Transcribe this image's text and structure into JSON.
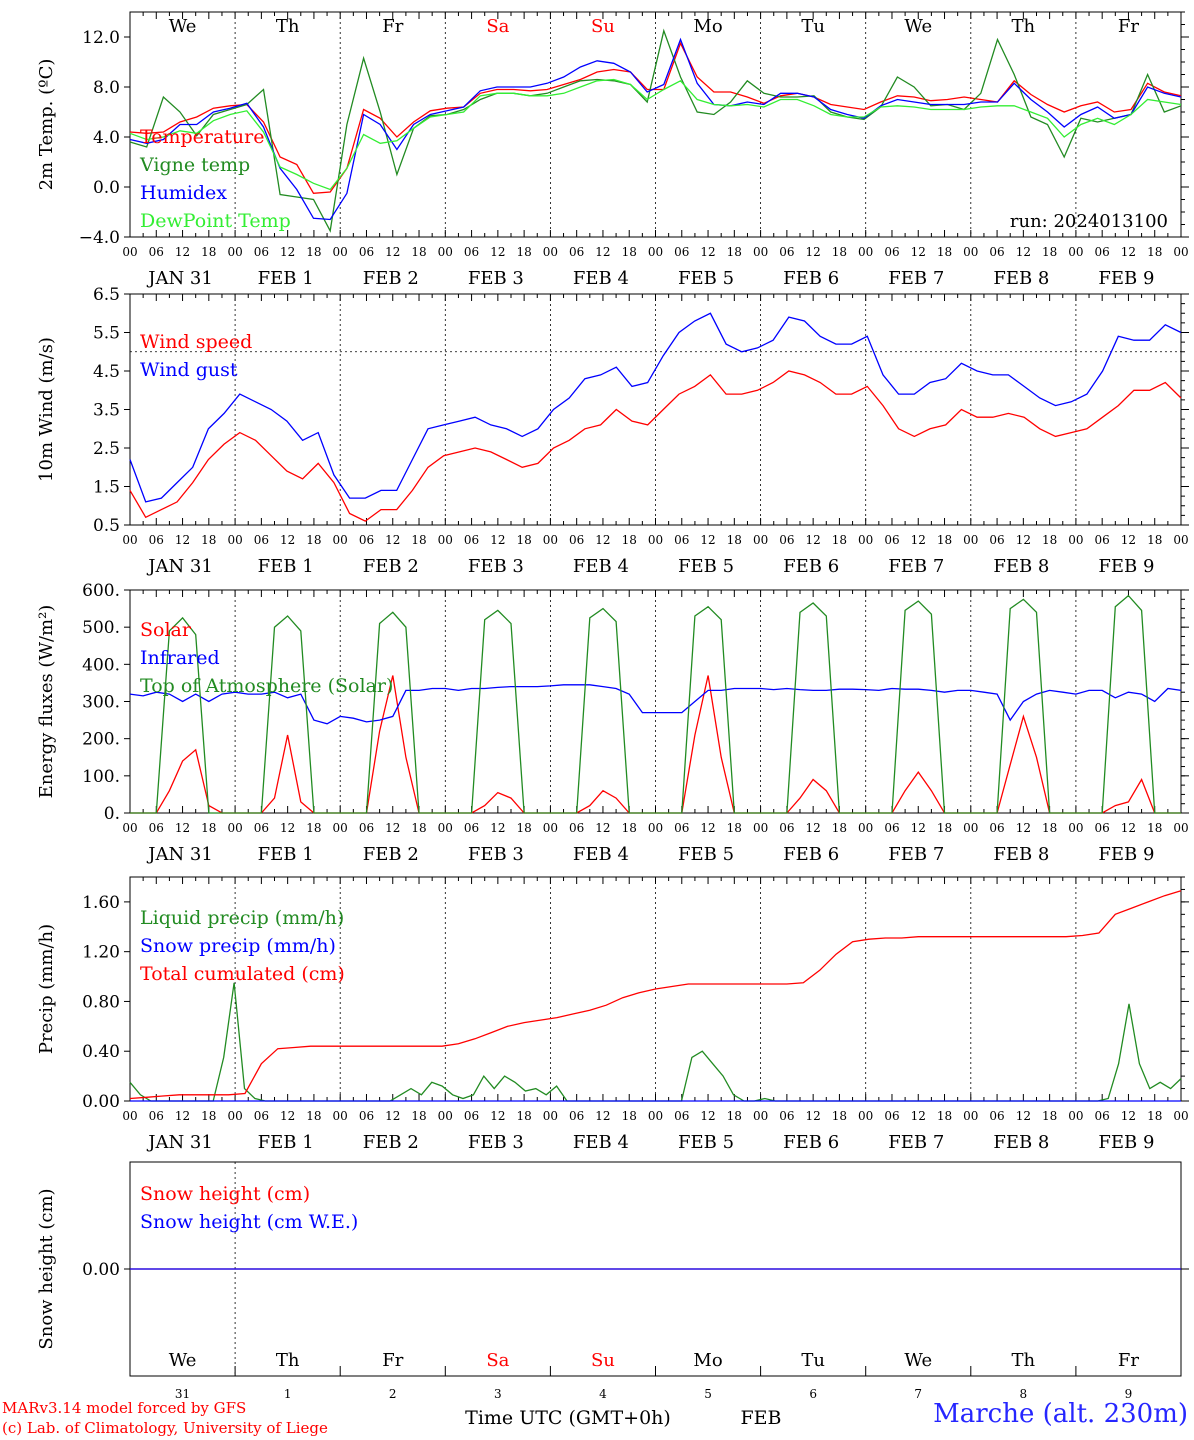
{
  "chart_data": [
    {
      "type": "line",
      "ylabel": "2m Temp. (ºC)",
      "ylim": [
        -4,
        14
      ],
      "yticks": [
        -4,
        0,
        4,
        8,
        12
      ],
      "ytick_labels": [
        "−4.0",
        "0.0",
        "4.0",
        "8.0",
        "12.0"
      ],
      "annotation": "run: 2024013100",
      "x_hours_step": 6,
      "series": [
        {
          "name": "Temperature",
          "color": "#ff0000",
          "values": [
            4.4,
            4.3,
            4.4,
            5.2,
            5.6,
            6.3,
            6.5,
            6.6,
            5.2,
            2.4,
            1.8,
            -0.5,
            -0.4,
            1.5,
            6.2,
            5.5,
            4.0,
            5.2,
            6.1,
            6.3,
            6.4,
            7.5,
            7.8,
            7.8,
            7.7,
            7.8,
            8.2,
            8.6,
            9.2,
            9.4,
            9.2,
            7.8,
            7.8,
            11.5,
            8.8,
            7.6,
            7.6,
            7.2,
            6.7,
            7.3,
            7.5,
            7.2,
            6.6,
            6.4,
            6.2,
            6.8,
            7.3,
            7.2,
            6.9,
            7.0,
            7.2,
            7.0,
            6.8,
            8.5,
            7.4,
            6.6,
            6.0,
            6.5,
            6.8,
            6.0,
            6.2,
            8.3,
            7.6,
            7.3
          ]
        },
        {
          "name": "Vigne temp",
          "color": "#228b22",
          "values": [
            3.6,
            3.2,
            7.2,
            6.0,
            4.1,
            5.8,
            6.2,
            6.6,
            7.8,
            -0.6,
            -0.8,
            -1.0,
            -3.5,
            5.0,
            10.3,
            6.0,
            1.0,
            4.7,
            5.7,
            5.8,
            6.2,
            7.0,
            7.5,
            7.5,
            7.3,
            7.5,
            8.0,
            8.5,
            8.6,
            8.5,
            8.2,
            6.8,
            12.5,
            8.8,
            6.0,
            5.8,
            6.8,
            8.5,
            7.5,
            7.2,
            7.2,
            7.3,
            6.0,
            5.6,
            5.4,
            6.4,
            8.8,
            8.0,
            6.5,
            6.6,
            6.2,
            7.5,
            11.8,
            9.0,
            5.6,
            5.0,
            2.4,
            5.5,
            5.2,
            5.5,
            5.8,
            9.0,
            6.0,
            6.5
          ]
        },
        {
          "name": "Humidex",
          "color": "#0000ff",
          "values": [
            3.8,
            3.5,
            3.8,
            5.0,
            5.0,
            6.0,
            6.3,
            6.7,
            4.8,
            1.5,
            -0.2,
            -2.5,
            -2.6,
            -0.5,
            5.8,
            5.0,
            3.0,
            5.0,
            5.8,
            6.1,
            6.4,
            7.7,
            8.0,
            8.0,
            8.0,
            8.3,
            8.8,
            9.6,
            10.1,
            9.9,
            9.2,
            7.6,
            8.2,
            11.8,
            8.3,
            6.6,
            6.5,
            6.8,
            6.6,
            7.5,
            7.5,
            7.2,
            6.2,
            5.8,
            5.5,
            6.5,
            7.0,
            6.8,
            6.6,
            6.6,
            6.6,
            6.8,
            6.8,
            8.3,
            7.0,
            6.0,
            4.8,
            5.8,
            6.4,
            5.5,
            5.8,
            8.0,
            7.5,
            7.2
          ]
        },
        {
          "name": "DewPoint Temp",
          "color": "#33ee33",
          "values": [
            4.3,
            3.8,
            4.0,
            4.5,
            4.3,
            5.3,
            5.8,
            6.1,
            4.4,
            1.6,
            1.0,
            0.3,
            -0.2,
            1.5,
            4.2,
            3.5,
            3.7,
            4.7,
            5.6,
            5.8,
            6.0,
            7.3,
            7.5,
            7.5,
            7.3,
            7.3,
            7.5,
            8.0,
            8.5,
            8.6,
            8.2,
            7.0,
            7.8,
            8.5,
            7.0,
            6.6,
            6.5,
            6.6,
            6.4,
            7.0,
            7.0,
            6.5,
            5.8,
            5.6,
            5.6,
            6.4,
            6.5,
            6.4,
            6.2,
            6.2,
            6.2,
            6.4,
            6.5,
            6.5,
            6.0,
            5.5,
            4.0,
            5.0,
            5.5,
            5.0,
            5.8,
            7.0,
            6.8,
            6.6
          ]
        }
      ]
    },
    {
      "type": "line",
      "ylabel": "10m Wind (m/s)",
      "ylim": [
        0.5,
        6.5
      ],
      "yticks": [
        0.5,
        1.5,
        2.5,
        3.5,
        4.5,
        5.5,
        6.5
      ],
      "ytick_labels": [
        "0.5",
        "1.5",
        "2.5",
        "3.5",
        "4.5",
        "5.5",
        "6.5"
      ],
      "dashed_y": 5.0,
      "x_hours_step": 6,
      "series": [
        {
          "name": "Wind speed",
          "color": "#ff0000",
          "values": [
            1.4,
            0.7,
            0.9,
            1.1,
            1.6,
            2.2,
            2.6,
            2.9,
            2.7,
            2.3,
            1.9,
            1.7,
            2.1,
            1.6,
            0.8,
            0.6,
            0.9,
            0.9,
            1.4,
            2.0,
            2.3,
            2.4,
            2.5,
            2.4,
            2.2,
            2.0,
            2.1,
            2.5,
            2.7,
            3.0,
            3.1,
            3.5,
            3.2,
            3.1,
            3.5,
            3.9,
            4.1,
            4.4,
            3.9,
            3.9,
            4.0,
            4.2,
            4.5,
            4.4,
            4.2,
            3.9,
            3.9,
            4.1,
            3.6,
            3.0,
            2.8,
            3.0,
            3.1,
            3.5,
            3.3,
            3.3,
            3.4,
            3.3,
            3.0,
            2.8,
            2.9,
            3.0,
            3.3,
            3.6,
            4.0,
            4.0,
            4.2,
            3.8
          ]
        },
        {
          "name": "Wind gust",
          "color": "#0000ff",
          "values": [
            2.2,
            1.1,
            1.2,
            1.6,
            2.0,
            3.0,
            3.4,
            3.9,
            3.7,
            3.5,
            3.2,
            2.7,
            2.9,
            1.8,
            1.2,
            1.2,
            1.4,
            1.4,
            2.2,
            3.0,
            3.1,
            3.2,
            3.3,
            3.1,
            3.0,
            2.8,
            3.0,
            3.5,
            3.8,
            4.3,
            4.4,
            4.6,
            4.1,
            4.2,
            4.9,
            5.5,
            5.8,
            6.0,
            5.2,
            5.0,
            5.1,
            5.3,
            5.9,
            5.8,
            5.4,
            5.2,
            5.2,
            5.4,
            4.4,
            3.9,
            3.9,
            4.2,
            4.3,
            4.7,
            4.5,
            4.4,
            4.4,
            4.1,
            3.8,
            3.6,
            3.7,
            3.9,
            4.5,
            5.4,
            5.3,
            5.3,
            5.7,
            5.5
          ]
        }
      ]
    },
    {
      "type": "line",
      "ylabel": "Energy fluxes (W/m²)",
      "ylim": [
        0,
        600
      ],
      "yticks": [
        0,
        100,
        200,
        300,
        400,
        500,
        600
      ],
      "ytick_labels": [
        "0.",
        "100.",
        "200.",
        "300.",
        "400.",
        "500.",
        "600."
      ],
      "x_hours_step": 3,
      "series": [
        {
          "name": "Solar",
          "color": "#ff0000",
          "values": [
            0,
            0,
            0,
            60,
            140,
            170,
            20,
            0,
            0,
            0,
            0,
            40,
            210,
            30,
            0,
            0,
            0,
            0,
            0,
            220,
            370,
            150,
            0,
            0,
            0,
            0,
            0,
            20,
            55,
            40,
            0,
            0,
            0,
            0,
            0,
            20,
            60,
            40,
            0,
            0,
            0,
            0,
            0,
            210,
            370,
            150,
            0,
            0,
            0,
            0,
            0,
            40,
            90,
            60,
            0,
            0,
            0,
            0,
            0,
            60,
            110,
            60,
            0,
            0,
            0,
            0,
            0,
            130,
            260,
            150,
            0,
            0,
            0,
            0,
            0,
            20,
            30,
            90,
            0,
            0,
            0
          ]
        },
        {
          "name": "Infrared",
          "color": "#0000ff",
          "values": [
            320,
            315,
            325,
            320,
            300,
            320,
            300,
            320,
            325,
            320,
            320,
            325,
            310,
            320,
            250,
            240,
            260,
            255,
            245,
            250,
            260,
            330,
            330,
            335,
            335,
            330,
            335,
            335,
            338,
            340,
            340,
            340,
            342,
            345,
            345,
            345,
            340,
            335,
            320,
            270,
            270,
            270,
            270,
            300,
            330,
            330,
            335,
            335,
            335,
            332,
            335,
            332,
            330,
            330,
            333,
            333,
            332,
            330,
            335,
            333,
            333,
            330,
            325,
            330,
            330,
            325,
            320,
            250,
            300,
            320,
            330,
            325,
            320,
            330,
            330,
            310,
            325,
            320,
            300,
            335,
            330
          ]
        },
        {
          "name": "Top of Atmosphere (Solar)",
          "color": "#228b22",
          "values": [
            0,
            0,
            0,
            490,
            525,
            480,
            0,
            0,
            0,
            0,
            0,
            500,
            530,
            490,
            0,
            0,
            0,
            0,
            0,
            510,
            540,
            500,
            0,
            0,
            0,
            0,
            0,
            520,
            545,
            510,
            0,
            0,
            0,
            0,
            0,
            525,
            550,
            515,
            0,
            0,
            0,
            0,
            0,
            530,
            555,
            520,
            0,
            0,
            0,
            0,
            0,
            540,
            565,
            530,
            0,
            0,
            0,
            0,
            0,
            545,
            570,
            535,
            0,
            0,
            0,
            0,
            0,
            550,
            575,
            540,
            0,
            0,
            0,
            0,
            0,
            555,
            585,
            545,
            0,
            0,
            0
          ]
        }
      ]
    },
    {
      "type": "line",
      "ylabel": "Precip (mm/h)",
      "ylim": [
        0,
        1.8
      ],
      "yticks": [
        0,
        0.4,
        0.8,
        1.2,
        1.6
      ],
      "ytick_labels": [
        "0.00",
        "0.40",
        "0.80",
        "1.20",
        "1.60"
      ],
      "x_hours_step": 6,
      "series": [
        {
          "name": "Liquid precip (mm/h)",
          "color": "#228b22",
          "values": [
            0.15,
            0.05,
            0.0,
            0.0,
            0.0,
            0.0,
            0.0,
            0.0,
            0.0,
            0.35,
            0.95,
            0.1,
            0.02,
            0.0,
            0.0,
            0.0,
            0.0,
            0.0,
            0.0,
            0.0,
            0.0,
            0.0,
            0.0,
            0.0,
            0.0,
            0.0,
            0.05,
            0.1,
            0.05,
            0.15,
            0.12,
            0.05,
            0.02,
            0.05,
            0.2,
            0.1,
            0.2,
            0.15,
            0.08,
            0.1,
            0.05,
            0.12,
            0.0,
            0.0,
            0.0,
            0.0,
            0.0,
            0.0,
            0.0,
            0.0,
            0.0,
            0.0,
            0.0,
            0.0,
            0.35,
            0.4,
            0.3,
            0.2,
            0.05,
            0.0,
            0.0,
            0.02,
            0.0,
            0.0,
            0.0,
            0.0,
            0.0,
            0.0,
            0.0,
            0.0,
            0.0,
            0.0,
            0.0,
            0.0,
            0.0,
            0.0,
            0.0,
            0.0,
            0.0,
            0.0,
            0.0,
            0.0,
            0.0,
            0.0,
            0.0,
            0.0,
            0.0,
            0.0,
            0.0,
            0.0,
            0.0,
            0.0,
            0.0,
            0.0,
            0.02,
            0.3,
            0.78,
            0.3,
            0.1,
            0.15,
            0.1,
            0.18
          ]
        },
        {
          "name": "Snow precip (mm/h)",
          "color": "#0000ff",
          "values": [
            0,
            0
          ]
        },
        {
          "name": "Total cumulated (cm)",
          "color": "#ff0000",
          "values": [
            0.02,
            0.03,
            0.04,
            0.05,
            0.05,
            0.05,
            0.05,
            0.06,
            0.3,
            0.42,
            0.43,
            0.44,
            0.44,
            0.44,
            0.44,
            0.44,
            0.44,
            0.44,
            0.44,
            0.44,
            0.46,
            0.5,
            0.55,
            0.6,
            0.63,
            0.65,
            0.67,
            0.7,
            0.73,
            0.77,
            0.83,
            0.87,
            0.9,
            0.92,
            0.94,
            0.94,
            0.94,
            0.94,
            0.94,
            0.94,
            0.94,
            0.95,
            1.05,
            1.18,
            1.28,
            1.3,
            1.31,
            1.31,
            1.32,
            1.32,
            1.32,
            1.32,
            1.32,
            1.32,
            1.32,
            1.32,
            1.32,
            1.32,
            1.33,
            1.35,
            1.5,
            1.55,
            1.6,
            1.65,
            1.69
          ]
        }
      ]
    },
    {
      "type": "line",
      "ylabel": "Snow height (cm)",
      "ylim": [
        -1,
        1
      ],
      "yticks": [
        0
      ],
      "ytick_labels": [
        "0.00"
      ],
      "x_hours_step": 6,
      "series": [
        {
          "name": "Snow height (cm)",
          "color": "#ff0000",
          "values": [
            0,
            0
          ]
        },
        {
          "name": "Snow height (cm W.E.)",
          "color": "#0000ff",
          "values": [
            0,
            0
          ]
        }
      ]
    }
  ],
  "x_axis": {
    "hour_labels": [
      "00",
      "06",
      "12",
      "18"
    ],
    "date_labels": [
      "JAN 31",
      "FEB  1",
      "FEB  2",
      "FEB  3",
      "FEB  4",
      "FEB  5",
      "FEB  6",
      "FEB  7",
      "FEB  8",
      "FEB  9"
    ],
    "days": [
      "We",
      "Th",
      "Fr",
      "Sa",
      "Su",
      "Mo",
      "Tu",
      "We",
      "Th",
      "Fr"
    ],
    "weekend_days": [
      3,
      4
    ],
    "day_numbers": [
      "31",
      "1",
      "2",
      "3",
      "4",
      "5",
      "6",
      "7",
      "8",
      "9"
    ],
    "xlabel": "Time UTC (GMT+0h)",
    "month_label": "FEB"
  },
  "footer": {
    "credit_line1": "MARv3.14 model forced by GFS",
    "credit_line2": "(c) Lab. of Climatology, University of Liege",
    "station": "Marche (alt. 230m)"
  }
}
